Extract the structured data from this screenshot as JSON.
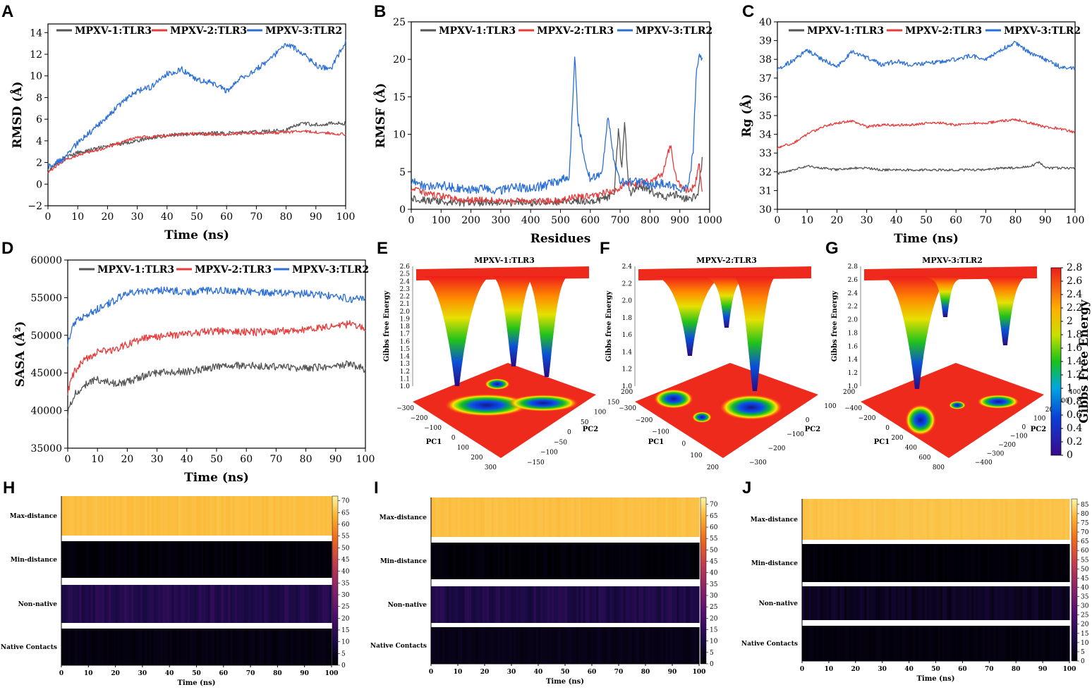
{
  "colors": {
    "s1": "#555555",
    "s2": "#e83b3b",
    "s3": "#2b6fd6",
    "axis": "#000000"
  },
  "chart_data": [
    {
      "id": "A",
      "type": "line",
      "letter": "A",
      "xlabel": "Time (ns)",
      "ylabel": "RMSD (Å)",
      "xlim": [
        0,
        100
      ],
      "ylim": [
        -2,
        14.8
      ],
      "xticks": [
        0,
        10,
        20,
        30,
        40,
        50,
        60,
        70,
        80,
        90,
        100
      ],
      "xtick_labels": [
        "0",
        "10",
        "20",
        "30",
        "40",
        "50",
        "60",
        "70",
        "80",
        "90",
        "100"
      ],
      "yticks": [
        -2,
        0,
        2,
        4,
        6,
        8,
        10,
        12,
        14
      ],
      "ytick_labels": [
        "−2",
        "0",
        "2",
        "4",
        "6",
        "8",
        "10",
        "12",
        "14"
      ],
      "series": [
        {
          "name": "MPXV-1:TLR3",
          "x": [
            0,
            5,
            10,
            15,
            20,
            25,
            30,
            35,
            40,
            45,
            50,
            55,
            60,
            65,
            70,
            75,
            80,
            85,
            90,
            95,
            100
          ],
          "y": [
            1.2,
            2.3,
            2.9,
            3.2,
            3.5,
            3.8,
            4.0,
            4.3,
            4.5,
            4.6,
            4.6,
            4.7,
            4.7,
            4.8,
            4.8,
            4.9,
            5.0,
            5.6,
            5.5,
            5.6,
            5.6
          ]
        },
        {
          "name": "MPXV-2:TLR3",
          "x": [
            0,
            5,
            10,
            15,
            20,
            25,
            30,
            35,
            40,
            45,
            50,
            55,
            60,
            65,
            70,
            75,
            80,
            85,
            90,
            95,
            100
          ],
          "y": [
            1.1,
            2.1,
            2.7,
            3.0,
            3.4,
            3.9,
            4.3,
            4.4,
            4.5,
            4.6,
            4.7,
            4.6,
            4.6,
            4.7,
            4.7,
            4.7,
            4.8,
            4.9,
            4.8,
            4.7,
            4.6
          ]
        },
        {
          "name": "MPXV-3:TLR2",
          "x": [
            0,
            5,
            10,
            15,
            20,
            25,
            30,
            35,
            40,
            45,
            50,
            55,
            60,
            65,
            70,
            75,
            80,
            85,
            90,
            95,
            100
          ],
          "y": [
            1.6,
            2.3,
            3.8,
            5.0,
            6.2,
            7.6,
            8.6,
            9.0,
            10.2,
            10.6,
            9.6,
            9.4,
            8.6,
            9.8,
            10.6,
            11.6,
            13.0,
            12.2,
            11.0,
            10.6,
            13.2
          ]
        }
      ]
    },
    {
      "id": "B",
      "type": "line",
      "letter": "B",
      "xlabel": "Residues",
      "ylabel": "RMSF (Å)",
      "xlim": [
        0,
        1000
      ],
      "ylim": [
        0,
        25
      ],
      "xticks": [
        0,
        100,
        200,
        300,
        400,
        500,
        600,
        700,
        800,
        900,
        1000
      ],
      "xtick_labels": [
        "0",
        "100",
        "200",
        "300",
        "400",
        "500",
        "600",
        "700",
        "800",
        "900",
        "1000"
      ],
      "yticks": [
        0,
        5,
        10,
        15,
        20,
        25
      ],
      "ytick_labels": [
        "0",
        "5",
        "10",
        "15",
        "20",
        "25"
      ],
      "series": [
        {
          "name": "MPXV-1:TLR3",
          "x": [
            0,
            50,
            100,
            150,
            200,
            250,
            300,
            350,
            400,
            450,
            500,
            550,
            600,
            650,
            680,
            695,
            705,
            715,
            730,
            760,
            800,
            850,
            880,
            900,
            930,
            960,
            975
          ],
          "y": [
            1.5,
            1.2,
            1.0,
            0.9,
            0.8,
            1.0,
            0.8,
            0.9,
            0.8,
            0.9,
            1.0,
            1.2,
            1.0,
            1.5,
            2.0,
            11.0,
            5.0,
            11.5,
            2.0,
            3.0,
            2.5,
            1.5,
            2.0,
            1.8,
            1.2,
            2.0,
            6.5
          ]
        },
        {
          "name": "MPXV-2:TLR3",
          "x": [
            0,
            50,
            100,
            150,
            200,
            250,
            300,
            350,
            400,
            450,
            500,
            550,
            600,
            650,
            680,
            700,
            720,
            750,
            800,
            840,
            870,
            880,
            900,
            930,
            950,
            965,
            975
          ],
          "y": [
            2.8,
            2.0,
            1.8,
            1.4,
            1.2,
            1.3,
            1.0,
            1.1,
            1.0,
            1.1,
            1.2,
            1.6,
            1.8,
            2.2,
            2.5,
            3.0,
            3.5,
            3.2,
            3.8,
            4.5,
            8.8,
            5.0,
            3.0,
            2.5,
            3.0,
            6.0,
            2.5
          ]
        },
        {
          "name": "MPXV-3:TLR2",
          "x": [
            0,
            50,
            100,
            150,
            200,
            250,
            300,
            350,
            400,
            450,
            500,
            530,
            548,
            558,
            575,
            600,
            640,
            660,
            680,
            700,
            750,
            800,
            850,
            900,
            930,
            945,
            955,
            965,
            975
          ],
          "y": [
            3.8,
            3.0,
            3.2,
            2.8,
            2.6,
            2.8,
            2.5,
            3.0,
            2.8,
            3.2,
            3.8,
            4.5,
            20.5,
            12.0,
            8.0,
            4.0,
            5.0,
            12.8,
            6.0,
            3.5,
            3.8,
            3.2,
            3.5,
            2.5,
            3.0,
            8.0,
            18.0,
            21.0,
            20.0
          ]
        }
      ]
    },
    {
      "id": "C",
      "type": "line",
      "letter": "C",
      "xlabel": "Time (ns)",
      "ylabel": "Rg (Å)",
      "xlim": [
        0,
        100
      ],
      "ylim": [
        30,
        40
      ],
      "xticks": [
        0,
        10,
        20,
        30,
        40,
        50,
        60,
        70,
        80,
        90,
        100
      ],
      "xtick_labels": [
        "0",
        "10",
        "20",
        "30",
        "40",
        "50",
        "60",
        "70",
        "80",
        "90",
        "100"
      ],
      "yticks": [
        30,
        31,
        32,
        33,
        34,
        35,
        36,
        37,
        38,
        39,
        40
      ],
      "ytick_labels": [
        "30",
        "31",
        "32",
        "33",
        "34",
        "35",
        "36",
        "37",
        "38",
        "39",
        "40"
      ],
      "series": [
        {
          "name": "MPXV-1:TLR3",
          "x": [
            0,
            5,
            10,
            15,
            20,
            25,
            30,
            35,
            40,
            45,
            50,
            55,
            60,
            65,
            70,
            75,
            80,
            85,
            88,
            90,
            95,
            100
          ],
          "y": [
            31.9,
            32.1,
            32.3,
            32.2,
            32.1,
            32.2,
            32.2,
            32.1,
            32.1,
            32.1,
            32.1,
            32.1,
            32.1,
            32.1,
            32.1,
            32.2,
            32.2,
            32.3,
            32.5,
            32.2,
            32.2,
            32.2
          ]
        },
        {
          "name": "MPXV-2:TLR3",
          "x": [
            0,
            5,
            10,
            15,
            20,
            25,
            30,
            35,
            40,
            45,
            50,
            55,
            60,
            65,
            70,
            75,
            80,
            85,
            90,
            95,
            100
          ],
          "y": [
            33.3,
            33.5,
            34.0,
            34.4,
            34.6,
            34.7,
            34.4,
            34.5,
            34.5,
            34.5,
            34.6,
            34.6,
            34.5,
            34.6,
            34.6,
            34.7,
            34.8,
            34.6,
            34.4,
            34.3,
            34.1
          ]
        },
        {
          "name": "MPXV-3:TLR2",
          "x": [
            0,
            5,
            10,
            15,
            20,
            25,
            30,
            35,
            40,
            45,
            50,
            55,
            60,
            65,
            70,
            75,
            80,
            85,
            90,
            95,
            100
          ],
          "y": [
            37.5,
            37.9,
            38.5,
            38.0,
            37.6,
            38.4,
            38.1,
            37.7,
            37.9,
            37.7,
            37.8,
            37.9,
            38.0,
            38.2,
            38.0,
            38.5,
            38.9,
            38.3,
            38.0,
            37.6,
            37.5
          ]
        }
      ]
    },
    {
      "id": "D",
      "type": "line",
      "letter": "D",
      "xlabel": "Time (ns)",
      "ylabel": "SASA (Å²)",
      "xlim": [
        0,
        100
      ],
      "ylim": [
        35000,
        60000
      ],
      "xticks": [
        0,
        10,
        20,
        30,
        40,
        50,
        60,
        70,
        80,
        90,
        100
      ],
      "xtick_labels": [
        "0",
        "10",
        "20",
        "30",
        "40",
        "50",
        "60",
        "70",
        "80",
        "90",
        "100"
      ],
      "yticks": [
        35000,
        40000,
        45000,
        50000,
        55000,
        60000
      ],
      "ytick_labels": [
        "35000",
        "40000",
        "45000",
        "50000",
        "55000",
        "60000"
      ],
      "series": [
        {
          "name": "MPXV-1:TLR3",
          "x": [
            0,
            2,
            5,
            10,
            15,
            20,
            25,
            30,
            40,
            50,
            60,
            70,
            80,
            90,
            95,
            100
          ],
          "y": [
            39500,
            42000,
            43200,
            44200,
            43600,
            43800,
            44500,
            45000,
            45200,
            45800,
            46000,
            45800,
            45600,
            46000,
            46200,
            45500
          ]
        },
        {
          "name": "MPXV-2:TLR3",
          "x": [
            0,
            2,
            5,
            10,
            15,
            20,
            25,
            30,
            40,
            50,
            60,
            70,
            80,
            90,
            95,
            100
          ],
          "y": [
            42500,
            45000,
            46500,
            47800,
            48000,
            48800,
            49500,
            49800,
            50200,
            50600,
            50400,
            50500,
            50800,
            51200,
            51500,
            51000
          ]
        },
        {
          "name": "MPXV-3:TLR2",
          "x": [
            0,
            2,
            5,
            10,
            15,
            20,
            25,
            30,
            40,
            50,
            60,
            70,
            80,
            90,
            95,
            100
          ],
          "y": [
            49000,
            51500,
            52500,
            53500,
            54500,
            55600,
            55800,
            56000,
            55800,
            56000,
            55800,
            55600,
            55500,
            55200,
            54800,
            55000
          ]
        }
      ]
    },
    {
      "id": "E",
      "type": "heatmap",
      "letter": "E",
      "title": "MPXV-1:TLR3",
      "zlabel": "Gibbs free Energy",
      "xlabel": "PC1",
      "ylabel": "PC2",
      "zticks": [
        "2.6",
        "2.5",
        "2.4",
        "2.3",
        "2.2",
        "2.1",
        "2.0",
        "1.9",
        "1.8",
        "1.7",
        "1.6",
        "1.5",
        "1.4",
        "1.3",
        "1.2",
        "1.1",
        "1.0"
      ],
      "pc1_ticks": [
        "−300",
        "−200",
        "−100",
        "0",
        "100",
        "200",
        "300"
      ],
      "pc2_ticks": [
        "200",
        "150",
        "100",
        "50",
        "0",
        "−50",
        "−100",
        "−150"
      ]
    },
    {
      "id": "F",
      "type": "heatmap",
      "letter": "F",
      "title": "MPXV-2:TLR3",
      "zlabel": "Gibbs free Energy",
      "xlabel": "PC1",
      "ylabel": "PC2",
      "zticks": [
        "2.4",
        "2.2",
        "2.0",
        "1.8",
        "1.6",
        "1.4",
        "1.2",
        "1.0"
      ],
      "pc1_ticks": [
        "−300",
        "−200",
        "−100",
        "0",
        "100",
        "200"
      ],
      "pc2_ticks": [
        "200",
        "100",
        "0",
        "−100",
        "−200",
        "−300"
      ]
    },
    {
      "id": "G",
      "type": "heatmap",
      "letter": "G",
      "title": "MPXV-3:TLR2",
      "zlabel": "Gibbs free Energy",
      "xlabel": "PC1",
      "ylabel": "PC2",
      "zticks": [
        "2.8",
        "2.6",
        "2.4",
        "2.2",
        "2.0",
        "1.8",
        "1.6",
        "1.4",
        "1.2",
        "1.0"
      ],
      "pc1_ticks": [
        "−400",
        "−200",
        "0",
        "200",
        "400",
        "600",
        "800"
      ],
      "pc2_ticks": [
        "400",
        "300",
        "200",
        "100",
        "0",
        "−100",
        "−200",
        "−300",
        "−400"
      ],
      "colorbar": {
        "label": "Gibbs Free Energy",
        "ticks": [
          "2.8",
          "2.6",
          "2.4",
          "2.2",
          "2",
          "1.8",
          "1.6",
          "1.4",
          "1.2",
          "1",
          "0.8",
          "0.6",
          "0.4",
          "0.2",
          "0"
        ]
      }
    },
    {
      "id": "H",
      "type": "heatmap",
      "letter": "H",
      "xlabel": "Time (ns)",
      "rows": [
        "Max-distance",
        "Min-distance",
        "Non-native",
        "Native Contacts"
      ],
      "row_values": [
        65,
        1,
        12,
        2
      ],
      "xticks": [
        "0",
        "10",
        "20",
        "30",
        "40",
        "50",
        "60",
        "70",
        "80",
        "90",
        "100"
      ],
      "cbar_ticks": [
        "70",
        "65",
        "60",
        "55",
        "50",
        "45",
        "40",
        "35",
        "30",
        "25",
        "20",
        "15",
        "10",
        "5",
        "0"
      ]
    },
    {
      "id": "I",
      "type": "heatmap",
      "letter": "I",
      "xlabel": "Time (ns)",
      "rows": [
        "Max-distance",
        "Min-distance",
        "Non-native",
        "Native Contacts"
      ],
      "row_values": [
        66,
        1,
        11,
        3
      ],
      "xticks": [
        "0",
        "10",
        "20",
        "30",
        "40",
        "50",
        "60",
        "70",
        "80",
        "90",
        "100"
      ],
      "cbar_ticks": [
        "70",
        "65",
        "60",
        "55",
        "50",
        "45",
        "40",
        "35",
        "30",
        "25",
        "20",
        "15",
        "10",
        "5",
        "0"
      ]
    },
    {
      "id": "J",
      "type": "heatmap",
      "letter": "J",
      "xlabel": "Time (ns)",
      "rows": [
        "Max-distance",
        "Min-distance",
        "Non-native",
        "Native Contacts"
      ],
      "row_values": [
        80,
        1,
        6,
        2
      ],
      "xticks": [
        "0",
        "10",
        "20",
        "30",
        "40",
        "50",
        "60",
        "70",
        "80",
        "90",
        "100"
      ],
      "cbar_ticks": [
        "85",
        "80",
        "75",
        "70",
        "65",
        "60",
        "55",
        "50",
        "45",
        "40",
        "35",
        "30",
        "25",
        "20",
        "15",
        "10",
        "5",
        "0"
      ]
    }
  ]
}
